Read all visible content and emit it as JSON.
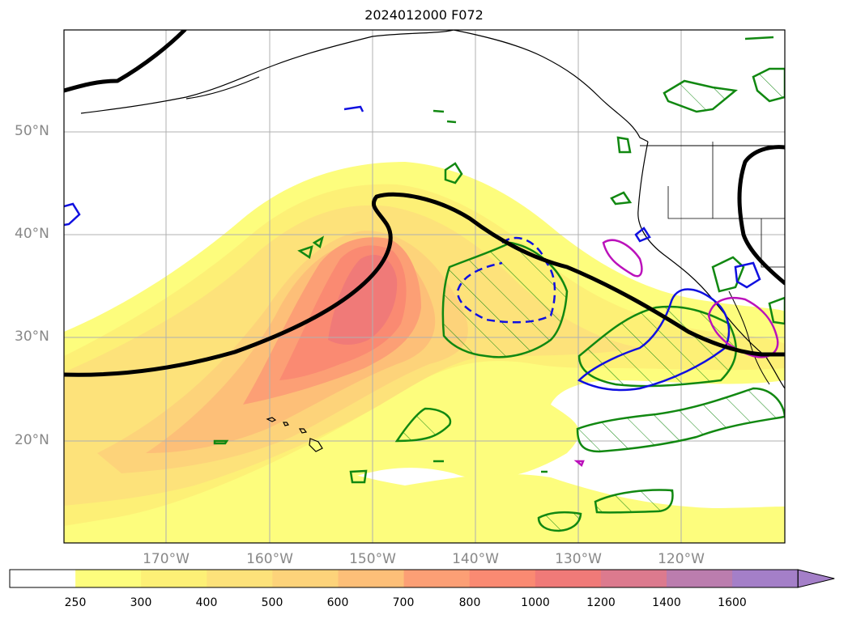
{
  "title": "2024012000 F072",
  "lat_labels": [
    "50°N",
    "40°N",
    "30°N",
    "20°N"
  ],
  "lon_labels": [
    "170°W",
    "160°W",
    "150°W",
    "140°W",
    "130°W",
    "120°W"
  ],
  "colorbar": {
    "ticks": [
      "250",
      "300",
      "400",
      "500",
      "600",
      "700",
      "800",
      "1000",
      "1200",
      "1400",
      "1600"
    ],
    "colors": [
      "#ffffff",
      "#fdfd7d",
      "#fdf076",
      "#fde27a",
      "#fdd37a",
      "#fdbf78",
      "#fc9f75",
      "#fa8a72",
      "#f07a78",
      "#dc7a8e",
      "#bb7dae",
      "#a47fc8"
    ],
    "extend": "max"
  },
  "contours": {
    "black_line": "#000000",
    "blue": "#1010e0",
    "green": "#118811",
    "magenta": "#bb11bb"
  }
}
